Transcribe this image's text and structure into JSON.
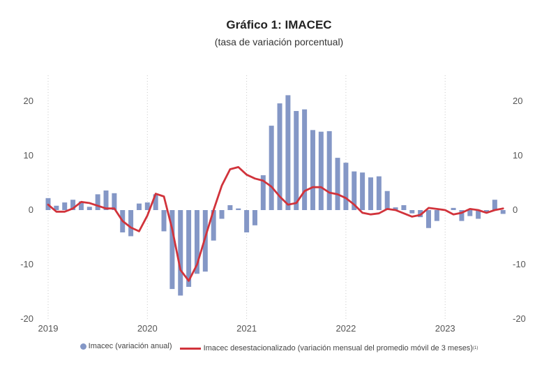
{
  "chart_data": {
    "type": "bar",
    "title": "Gráfico 1:  IMACEC",
    "subtitle": "(tasa de variación porcentual)",
    "x_tick_labels": [
      "2019",
      "2020",
      "2021",
      "2022",
      "2023"
    ],
    "y_tick_labels_left": [
      "20",
      "10",
      "0",
      "-10",
      "-20"
    ],
    "y_tick_labels_right": [
      "20",
      "10",
      "0",
      "-10",
      "-20"
    ],
    "ylim": [
      -20,
      20
    ],
    "xlabel": "",
    "ylabel": "",
    "grid": "vertical dotted at years",
    "legend_position": "bottom-center",
    "categories": [
      "2019-01",
      "2019-02",
      "2019-03",
      "2019-04",
      "2019-05",
      "2019-06",
      "2019-07",
      "2019-08",
      "2019-09",
      "2019-10",
      "2019-11",
      "2019-12",
      "2020-01",
      "2020-02",
      "2020-03",
      "2020-04",
      "2020-05",
      "2020-06",
      "2020-07",
      "2020-08",
      "2020-09",
      "2020-10",
      "2020-11",
      "2020-12",
      "2021-01",
      "2021-02",
      "2021-03",
      "2021-04",
      "2021-05",
      "2021-06",
      "2021-07",
      "2021-08",
      "2021-09",
      "2021-10",
      "2021-11",
      "2021-12",
      "2022-01",
      "2022-02",
      "2022-03",
      "2022-04",
      "2022-05",
      "2022-06",
      "2022-07",
      "2022-08",
      "2022-09",
      "2022-10",
      "2022-11",
      "2022-12",
      "2023-01",
      "2023-02",
      "2023-03",
      "2023-04",
      "2023-05",
      "2023-06",
      "2023-07",
      "2023-08"
    ],
    "series": [
      {
        "name": "Imacec (variación anual)",
        "type": "bar",
        "color": "#8497c6",
        "values": [
          2.2,
          0.8,
          1.4,
          1.9,
          1.6,
          0.6,
          2.9,
          3.6,
          3.1,
          -4.1,
          -4.8,
          1.2,
          1.4,
          2.9,
          -3.9,
          -14.5,
          -15.7,
          -14.1,
          -11.7,
          -11.3,
          -5.6,
          -1.6,
          0.9,
          0.3,
          -4.1,
          -2.8,
          6.4,
          15.5,
          19.6,
          21.1,
          18.2,
          18.5,
          14.7,
          14.4,
          14.5,
          9.6,
          8.7,
          7.1,
          6.9,
          6.0,
          6.2,
          3.5,
          0.5,
          0.9,
          -0.6,
          -1.3,
          -3.3,
          -2.0,
          0.0,
          0.4,
          -2.0,
          -1.1,
          -1.6,
          -0.5,
          1.9,
          -0.7
        ]
      },
      {
        "name": "Imacec desestacionalizado (variación mensual del promedio móvil de 3 meses)",
        "name_superscript": "(1)",
        "type": "line",
        "color": "#d1333b",
        "values": [
          1.0,
          -0.3,
          -0.3,
          0.3,
          1.5,
          1.3,
          0.8,
          0.3,
          0.3,
          -2.0,
          -3.2,
          -3.9,
          -1.0,
          3.0,
          2.5,
          -3.5,
          -11.0,
          -13.0,
          -10.0,
          -5.0,
          0.0,
          4.5,
          7.5,
          7.9,
          6.5,
          5.8,
          5.4,
          4.3,
          2.5,
          1.0,
          1.3,
          3.5,
          4.2,
          4.2,
          3.2,
          2.9,
          2.2,
          1.0,
          -0.5,
          -0.8,
          -0.6,
          0.2,
          0.0,
          -0.6,
          -1.2,
          -0.9,
          0.4,
          0.2,
          0.0,
          -0.8,
          -0.5,
          0.2,
          0.0,
          -0.5,
          0.0,
          0.3
        ]
      }
    ]
  }
}
